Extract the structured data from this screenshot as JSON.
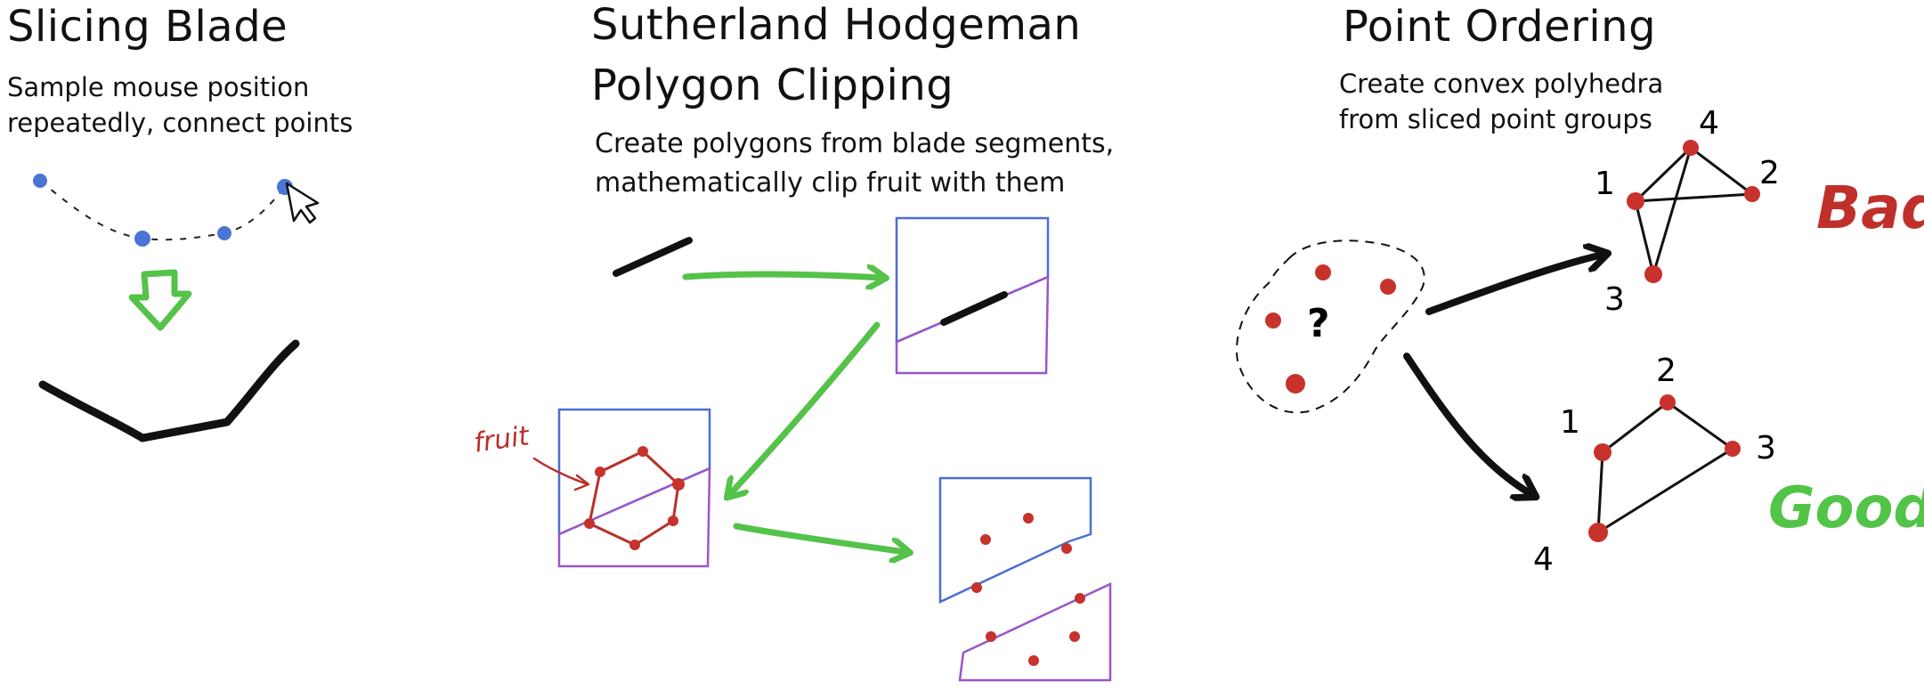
{
  "panels": {
    "slicing": {
      "title": "Slicing Blade",
      "desc_lines": [
        "Sample mouse position",
        "repeatedly, connect points"
      ]
    },
    "clipping": {
      "title_lines": [
        "Sutherland Hodgeman",
        "Polygon Clipping"
      ],
      "desc_lines": [
        "Create polygons from blade segments,",
        "mathematically clip fruit with them"
      ],
      "fruit_label": "fruit"
    },
    "ordering": {
      "title": "Point Ordering",
      "desc_lines": [
        "Create convex polyhedra",
        "from sliced point groups"
      ],
      "unknown_mark": "?",
      "bad": {
        "label": "Bad",
        "numbers": [
          "1",
          "2",
          "3",
          "4"
        ]
      },
      "good": {
        "label": "Good",
        "numbers": [
          "1",
          "2",
          "3",
          "4"
        ]
      }
    }
  },
  "colors": {
    "ink": "#111111",
    "blue_point": "#4a74d6",
    "green_arrow": "#55c24a",
    "red_point": "#c8322c",
    "blue_box": "#4a6fd0",
    "purple_box": "#9b55c8",
    "fruit_red": "#b8302a",
    "bad_red": "#c0302a",
    "good_green": "#52c447"
  }
}
